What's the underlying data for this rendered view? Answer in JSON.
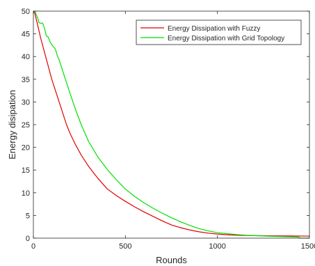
{
  "chart_data": {
    "type": "line",
    "title": "",
    "xlabel": "Rounds",
    "ylabel": "Energy disipation",
    "xlim": [
      0,
      1500
    ],
    "ylim": [
      0,
      50
    ],
    "xticks": [
      0,
      500,
      1000,
      1500
    ],
    "xtick_labels": [
      "0",
      "500",
      "1000",
      "1500"
    ],
    "yticks": [
      0,
      5,
      10,
      15,
      20,
      25,
      30,
      35,
      40,
      45,
      50
    ],
    "ytick_labels": [
      "0",
      "5",
      "10",
      "15",
      "20",
      "25",
      "30",
      "35",
      "40",
      "45",
      "50"
    ],
    "grid": false,
    "legend_position": "top-right",
    "series": [
      {
        "name": "Energy Dissipation with Fuzzy",
        "color": "#e00000",
        "x": [
          0,
          8,
          20,
          40,
          60,
          80,
          100,
          120,
          140,
          160,
          180,
          200,
          230,
          260,
          300,
          350,
          400,
          450,
          500,
          550,
          600,
          650,
          700,
          750,
          800,
          850,
          900,
          950,
          1000,
          1050,
          1100,
          1150,
          1200,
          1300,
          1400,
          1500
        ],
        "y": [
          50,
          49.5,
          47.5,
          44,
          41,
          38,
          35,
          32.5,
          30,
          27.5,
          25,
          23,
          20.5,
          18.3,
          15.8,
          13.2,
          10.9,
          9.4,
          8.1,
          6.9,
          5.8,
          4.8,
          3.8,
          2.9,
          2.3,
          1.8,
          1.4,
          1.1,
          0.9,
          0.75,
          0.65,
          0.6,
          0.55,
          0.5,
          0.48,
          0.45
        ]
      },
      {
        "name": "Energy Dissipation with Grid Topology",
        "color": "#00e000",
        "x": [
          0,
          8,
          15,
          25,
          30,
          40,
          50,
          60,
          70,
          80,
          90,
          100,
          110,
          120,
          130,
          140,
          150,
          170,
          200,
          230,
          260,
          300,
          350,
          400,
          450,
          500,
          550,
          600,
          650,
          700,
          750,
          800,
          850,
          900,
          950,
          1000,
          1050,
          1100,
          1150,
          1200,
          1300,
          1400,
          1440,
          1450,
          1500
        ],
        "y": [
          50,
          50,
          49.3,
          48.3,
          47.5,
          47.3,
          47.4,
          46.3,
          44.6,
          44.3,
          43.3,
          42.6,
          42.1,
          41.6,
          40.2,
          39.3,
          38.0,
          35.5,
          31.8,
          28.2,
          25.0,
          21.3,
          17.9,
          15.2,
          12.9,
          10.8,
          9.2,
          7.8,
          6.6,
          5.5,
          4.5,
          3.6,
          2.8,
          2.1,
          1.6,
          1.2,
          1.0,
          0.8,
          0.65,
          0.55,
          0.4,
          0.3,
          0.25,
          0.0,
          0.0
        ]
      }
    ]
  }
}
